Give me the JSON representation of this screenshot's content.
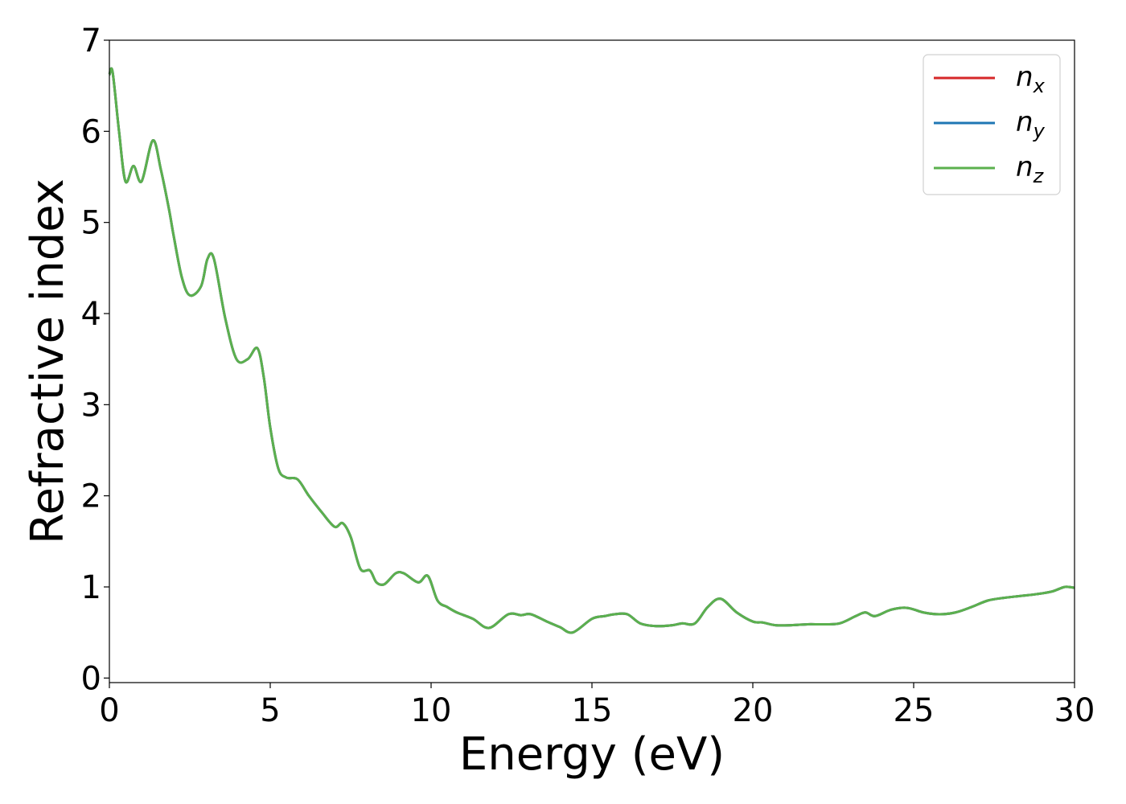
{
  "chart_data": {
    "type": "line",
    "title": "",
    "xlabel": "Energy (eV)",
    "ylabel": "Refractive index",
    "xlim": [
      0,
      30
    ],
    "ylim": [
      -0.05,
      7.0
    ],
    "xticks": [
      0,
      5,
      10,
      15,
      20,
      25,
      30
    ],
    "yticks": [
      0,
      1,
      2,
      3,
      4,
      5,
      6,
      7
    ],
    "grid": false,
    "legend_position": "top-right",
    "x": [
      0,
      0.1,
      0.3,
      0.5,
      0.75,
      1.0,
      1.35,
      1.6,
      1.85,
      2.0,
      2.25,
      2.5,
      2.85,
      3.05,
      3.25,
      3.6,
      3.95,
      4.3,
      4.6,
      4.8,
      5.0,
      5.25,
      5.5,
      5.85,
      6.2,
      6.6,
      7.0,
      7.25,
      7.5,
      7.8,
      8.1,
      8.3,
      8.55,
      8.9,
      9.15,
      9.6,
      9.9,
      10.2,
      10.5,
      10.8,
      11.3,
      11.8,
      12.4,
      12.8,
      13.1,
      13.6,
      14.0,
      14.4,
      15.0,
      15.4,
      15.7,
      16.1,
      16.5,
      17.0,
      17.5,
      17.8,
      18.2,
      18.6,
      19.0,
      19.5,
      20.0,
      20.3,
      20.7,
      21.2,
      21.7,
      22.2,
      22.7,
      23.2,
      23.5,
      23.8,
      24.3,
      24.8,
      25.3,
      25.8,
      26.3,
      26.8,
      27.3,
      27.8,
      28.3,
      28.8,
      29.3,
      29.7,
      30.0
    ],
    "series": [
      {
        "name": "n_x",
        "color": "#d62728",
        "values": [
          6.62,
          6.65,
          6.0,
          5.45,
          5.62,
          5.45,
          5.9,
          5.58,
          5.15,
          4.85,
          4.4,
          4.2,
          4.3,
          4.6,
          4.6,
          3.95,
          3.5,
          3.5,
          3.62,
          3.3,
          2.75,
          2.3,
          2.2,
          2.18,
          2.0,
          1.82,
          1.66,
          1.7,
          1.55,
          1.2,
          1.18,
          1.05,
          1.03,
          1.15,
          1.15,
          1.05,
          1.12,
          0.85,
          0.78,
          0.72,
          0.65,
          0.55,
          0.7,
          0.69,
          0.7,
          0.62,
          0.56,
          0.5,
          0.65,
          0.68,
          0.7,
          0.7,
          0.6,
          0.57,
          0.58,
          0.6,
          0.6,
          0.78,
          0.87,
          0.72,
          0.62,
          0.61,
          0.58,
          0.58,
          0.59,
          0.59,
          0.6,
          0.68,
          0.72,
          0.68,
          0.75,
          0.77,
          0.72,
          0.7,
          0.72,
          0.78,
          0.85,
          0.88,
          0.9,
          0.92,
          0.95,
          1.0,
          0.99
        ]
      },
      {
        "name": "n_y",
        "color": "#1f77b4",
        "values": [
          6.62,
          6.65,
          6.0,
          5.45,
          5.62,
          5.45,
          5.9,
          5.58,
          5.15,
          4.85,
          4.4,
          4.2,
          4.3,
          4.6,
          4.6,
          3.95,
          3.5,
          3.5,
          3.62,
          3.3,
          2.75,
          2.3,
          2.2,
          2.18,
          2.0,
          1.82,
          1.66,
          1.7,
          1.55,
          1.2,
          1.18,
          1.05,
          1.03,
          1.15,
          1.15,
          1.05,
          1.12,
          0.85,
          0.78,
          0.72,
          0.65,
          0.55,
          0.7,
          0.69,
          0.7,
          0.62,
          0.56,
          0.5,
          0.65,
          0.68,
          0.7,
          0.7,
          0.6,
          0.57,
          0.58,
          0.6,
          0.6,
          0.78,
          0.87,
          0.72,
          0.62,
          0.61,
          0.58,
          0.58,
          0.59,
          0.59,
          0.6,
          0.68,
          0.72,
          0.68,
          0.75,
          0.77,
          0.72,
          0.7,
          0.72,
          0.78,
          0.85,
          0.88,
          0.9,
          0.92,
          0.95,
          1.0,
          0.99
        ]
      },
      {
        "name": "n_z",
        "color": "#5bb04e",
        "values": [
          6.62,
          6.65,
          6.0,
          5.45,
          5.62,
          5.45,
          5.9,
          5.58,
          5.15,
          4.85,
          4.4,
          4.2,
          4.3,
          4.6,
          4.6,
          3.95,
          3.5,
          3.5,
          3.62,
          3.3,
          2.75,
          2.3,
          2.2,
          2.18,
          2.0,
          1.82,
          1.66,
          1.7,
          1.55,
          1.2,
          1.18,
          1.05,
          1.03,
          1.15,
          1.15,
          1.05,
          1.12,
          0.85,
          0.78,
          0.72,
          0.65,
          0.55,
          0.7,
          0.69,
          0.7,
          0.62,
          0.56,
          0.5,
          0.65,
          0.68,
          0.7,
          0.7,
          0.6,
          0.57,
          0.58,
          0.6,
          0.6,
          0.78,
          0.87,
          0.72,
          0.62,
          0.61,
          0.58,
          0.58,
          0.59,
          0.59,
          0.6,
          0.68,
          0.72,
          0.68,
          0.75,
          0.77,
          0.72,
          0.7,
          0.72,
          0.78,
          0.85,
          0.88,
          0.9,
          0.92,
          0.95,
          1.0,
          0.99
        ]
      }
    ],
    "legend": [
      {
        "base": "n",
        "sub": "x",
        "color": "#d62728"
      },
      {
        "base": "n",
        "sub": "y",
        "color": "#1f77b4"
      },
      {
        "base": "n",
        "sub": "z",
        "color": "#5bb04e"
      }
    ]
  }
}
